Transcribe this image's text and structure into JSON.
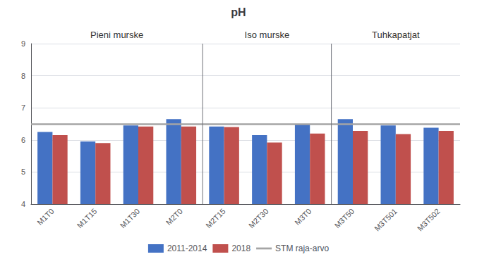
{
  "chart_data": {
    "type": "bar",
    "title": "pH",
    "categories": [
      "M1T0",
      "M1T15",
      "M1T30",
      "M2T0",
      "M2T15",
      "M2T30",
      "M3T0",
      "M3T50",
      "M3T501",
      "M3T502"
    ],
    "series": [
      {
        "name": "2011-2014",
        "color": "#4472C4",
        "values": [
          6.25,
          5.95,
          6.45,
          6.65,
          6.42,
          6.15,
          6.5,
          6.65,
          6.45,
          6.38
        ]
      },
      {
        "name": "2018",
        "color": "#C0504D",
        "values": [
          6.15,
          5.9,
          6.42,
          6.42,
          6.4,
          5.92,
          6.2,
          6.28,
          6.18,
          6.28
        ]
      }
    ],
    "hlines": [
      {
        "name": "STM raja-arvo",
        "value": 6.5,
        "color": "#A5A5A5"
      }
    ],
    "sections": [
      {
        "label": "Pieni murske",
        "first": "M1T0",
        "last": "M2T0"
      },
      {
        "label": "Iso murske",
        "first": "M2T15",
        "last": "M3T0"
      },
      {
        "label": "Tuhkapatjat",
        "first": "M3T50",
        "last": "M3T502"
      }
    ],
    "ylim": [
      4,
      9
    ],
    "yticks": [
      4,
      5,
      6,
      7,
      8,
      9
    ],
    "grid": true,
    "legend": "bottom"
  }
}
